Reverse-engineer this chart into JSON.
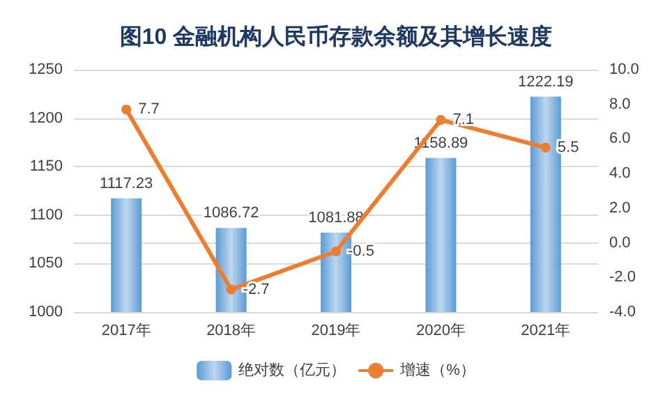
{
  "chart_data": {
    "type": "bar",
    "title": "图10 金融机构人民币存款余额及其增长速度",
    "categories": [
      "2017年",
      "2018年",
      "2019年",
      "2020年",
      "2021年"
    ],
    "series": [
      {
        "name": "绝对数（亿元）",
        "color": "#5b9bd5",
        "values": [
          1117.23,
          1086.72,
          1081.88,
          1158.89,
          1222.19
        ]
      },
      {
        "name": "增速（%）",
        "type": "line",
        "axis": "y2",
        "color": "#ed7d31",
        "marker": "circle",
        "values": [
          7.7,
          -2.7,
          -0.5,
          7.1,
          5.5
        ]
      }
    ],
    "ylim": [
      1000,
      1250
    ],
    "yticks": [
      1000,
      1050,
      1100,
      1150,
      1200,
      1250
    ],
    "y2lim": [
      -4,
      10
    ],
    "y2ticks": [
      {
        "value": -4,
        "label": "-4.0"
      },
      {
        "value": -2,
        "label": "-2.0"
      },
      {
        "value": 0,
        "label": "0.0"
      },
      {
        "value": 2,
        "label": "2.0"
      },
      {
        "value": 4,
        "label": "4.0"
      },
      {
        "value": 6,
        "label": "6.0"
      },
      {
        "value": 8,
        "label": "8.0"
      },
      {
        "value": 10,
        "label": "10.0"
      }
    ],
    "grid": "y",
    "legend": "bottom",
    "data_labels": true
  }
}
